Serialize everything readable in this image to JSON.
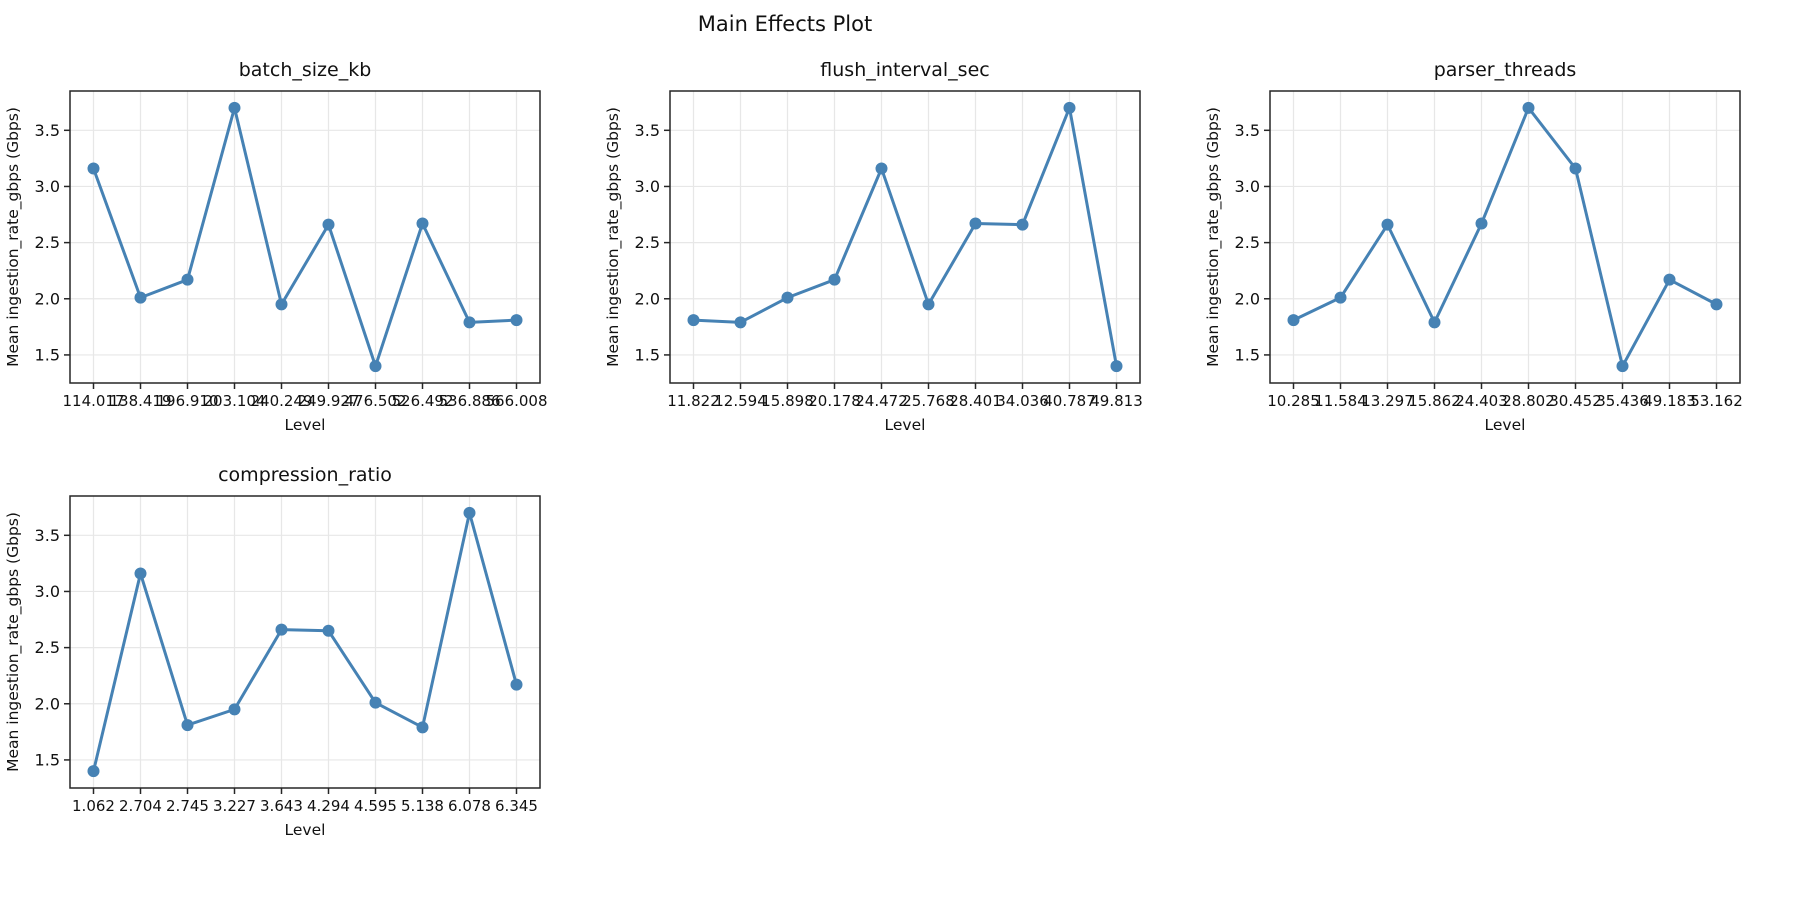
{
  "figure": {
    "suptitle": "Main Effects Plot",
    "accent_color": "#4682B4",
    "grid_color": "#e7e7e7",
    "frame_color": "#262626",
    "background_color": "#ffffff"
  },
  "chart_data": {
    "type": "line",
    "title": "Main Effects Plot",
    "xlabel": "Level",
    "ylabel": "Mean ingestion_rate_gbps (Gbps)",
    "yticks": [
      "1.5",
      "2.0",
      "2.5",
      "3.0",
      "3.5"
    ],
    "ylim": [
      1.25,
      3.85
    ],
    "grid": true,
    "marker": "o",
    "legend": "none",
    "subplots": [
      {
        "title": "batch_size_kb",
        "xlabel": "Level",
        "levels": [
          "114.017",
          "138.419",
          "196.910",
          "203.104",
          "240.249",
          "249.927",
          "476.502",
          "526.492",
          "536.886",
          "566.008"
        ],
        "means": [
          3.16,
          2.01,
          2.17,
          3.7,
          1.95,
          2.66,
          1.4,
          2.67,
          1.79,
          1.81
        ]
      },
      {
        "title": "flush_interval_sec",
        "xlabel": "Level",
        "levels": [
          "11.822",
          "12.594",
          "15.898",
          "20.178",
          "24.472",
          "25.768",
          "28.401",
          "34.036",
          "40.787",
          "49.813"
        ],
        "means": [
          1.81,
          1.79,
          2.01,
          2.17,
          3.16,
          1.95,
          2.67,
          2.66,
          3.7,
          1.4
        ]
      },
      {
        "title": "parser_threads",
        "xlabel": "Level",
        "levels": [
          "10.285",
          "11.584",
          "13.297",
          "15.862",
          "24.403",
          "28.802",
          "30.452",
          "35.436",
          "49.183",
          "53.162"
        ],
        "means": [
          1.81,
          2.01,
          2.66,
          1.79,
          2.67,
          3.7,
          3.16,
          1.4,
          2.17,
          1.95
        ]
      },
      {
        "title": "compression_ratio",
        "xlabel": "Level",
        "levels": [
          "1.062",
          "2.704",
          "2.745",
          "3.227",
          "3.643",
          "4.294",
          "4.595",
          "5.138",
          "6.078",
          "6.345"
        ],
        "means": [
          1.4,
          3.16,
          1.81,
          1.95,
          2.66,
          2.65,
          2.01,
          1.79,
          3.7,
          2.17
        ]
      }
    ]
  }
}
